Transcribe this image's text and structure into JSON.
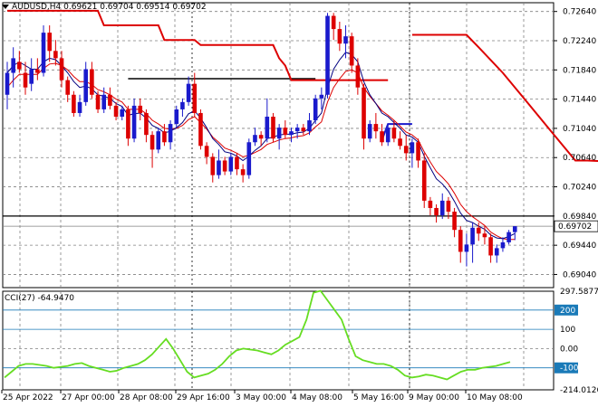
{
  "header": {
    "symbol": "AUDUSD,H4",
    "ohlc": "0.69621 0.69704 0.69514 0.69702"
  },
  "price_axis": {
    "ticks": [
      "0.72640",
      "0.72240",
      "0.71840",
      "0.71440",
      "0.71040",
      "0.70640",
      "0.70240",
      "0.69840",
      "0.69440",
      "0.69040"
    ],
    "current_price": "0.69702"
  },
  "cci_panel": {
    "title": "CCI(27) -64.9470",
    "axis_ticks": [
      "297.5877",
      "200",
      "100",
      "0.00",
      "-100",
      "-214.0126"
    ]
  },
  "time_axis": {
    "ticks": [
      "25 Apr 2022",
      "27 Apr 00:00",
      "28 Apr 08:00",
      "29 Apr 16:00",
      "3 May 00:00",
      "4 May 08:00",
      "5 May 16:00",
      "9 May 00:00",
      "10 May 08:00"
    ]
  },
  "colors": {
    "bull": "#1a1acc",
    "bear": "#dd0000",
    "ma_fast": "#000080",
    "ma_slow": "#dd0000",
    "stop": "#dd0000",
    "cci": "#66dd22",
    "grid": "#808080",
    "cci_level": "#1a7ab8"
  },
  "chart_data": {
    "type": "candlestick",
    "price_range": [
      0.6886,
      0.7276
    ],
    "support_level": 0.6984,
    "trend_line": {
      "price": 0.7172,
      "from_bar": 20,
      "to_bar": 51
    },
    "candles": [
      [
        0.715,
        0.7195,
        0.713,
        0.718
      ],
      [
        0.718,
        0.7215,
        0.716,
        0.72
      ],
      [
        0.7195,
        0.721,
        0.718,
        0.7185
      ],
      [
        0.718,
        0.7195,
        0.715,
        0.716
      ],
      [
        0.7165,
        0.72,
        0.7155,
        0.7185
      ],
      [
        0.7185,
        0.72,
        0.717,
        0.718
      ],
      [
        0.718,
        0.7245,
        0.7175,
        0.7235
      ],
      [
        0.7235,
        0.7245,
        0.7195,
        0.721
      ],
      [
        0.721,
        0.7225,
        0.719,
        0.72
      ],
      [
        0.72,
        0.721,
        0.716,
        0.717
      ],
      [
        0.717,
        0.7175,
        0.714,
        0.715
      ],
      [
        0.715,
        0.7155,
        0.712,
        0.7125
      ],
      [
        0.7125,
        0.715,
        0.712,
        0.714
      ],
      [
        0.714,
        0.7195,
        0.7135,
        0.7185
      ],
      [
        0.7185,
        0.7195,
        0.7145,
        0.715
      ],
      [
        0.715,
        0.7155,
        0.7125,
        0.713
      ],
      [
        0.713,
        0.716,
        0.7125,
        0.715
      ],
      [
        0.715,
        0.716,
        0.713,
        0.7135
      ],
      [
        0.7135,
        0.714,
        0.7115,
        0.712
      ],
      [
        0.712,
        0.7135,
        0.7115,
        0.713
      ],
      [
        0.713,
        0.7135,
        0.708,
        0.709
      ],
      [
        0.709,
        0.7145,
        0.7085,
        0.7135
      ],
      [
        0.7135,
        0.7145,
        0.7115,
        0.7125
      ],
      [
        0.7125,
        0.713,
        0.7085,
        0.7095
      ],
      [
        0.7095,
        0.71,
        0.705,
        0.7075
      ],
      [
        0.7075,
        0.7105,
        0.707,
        0.71
      ],
      [
        0.71,
        0.711,
        0.708,
        0.7085
      ],
      [
        0.7085,
        0.7115,
        0.7075,
        0.711
      ],
      [
        0.711,
        0.7135,
        0.7105,
        0.713
      ],
      [
        0.713,
        0.7145,
        0.712,
        0.714
      ],
      [
        0.714,
        0.7175,
        0.7135,
        0.7165
      ],
      [
        0.7165,
        0.718,
        0.712,
        0.7125
      ],
      [
        0.7125,
        0.713,
        0.7075,
        0.708
      ],
      [
        0.708,
        0.7085,
        0.7055,
        0.7065
      ],
      [
        0.7065,
        0.707,
        0.703,
        0.704
      ],
      [
        0.704,
        0.7075,
        0.7035,
        0.706
      ],
      [
        0.706,
        0.7065,
        0.704,
        0.7045
      ],
      [
        0.7045,
        0.707,
        0.704,
        0.7065
      ],
      [
        0.7065,
        0.707,
        0.704,
        0.7048
      ],
      [
        0.7048,
        0.7055,
        0.703,
        0.704
      ],
      [
        0.704,
        0.709,
        0.7035,
        0.7085
      ],
      [
        0.7085,
        0.7105,
        0.708,
        0.7095
      ],
      [
        0.7095,
        0.71,
        0.708,
        0.709
      ],
      [
        0.709,
        0.7145,
        0.7085,
        0.712
      ],
      [
        0.712,
        0.7125,
        0.7085,
        0.709
      ],
      [
        0.709,
        0.711,
        0.7075,
        0.7105
      ],
      [
        0.7105,
        0.7115,
        0.709,
        0.7095
      ],
      [
        0.7095,
        0.7105,
        0.7085,
        0.71
      ],
      [
        0.71,
        0.711,
        0.709,
        0.7105
      ],
      [
        0.7105,
        0.711,
        0.7095,
        0.71
      ],
      [
        0.71,
        0.7125,
        0.7095,
        0.7115
      ],
      [
        0.7115,
        0.715,
        0.711,
        0.7145
      ],
      [
        0.7145,
        0.716,
        0.713,
        0.715
      ],
      [
        0.715,
        0.7262,
        0.7145,
        0.7258
      ],
      [
        0.7258,
        0.7262,
        0.7225,
        0.724
      ],
      [
        0.724,
        0.725,
        0.721,
        0.722
      ],
      [
        0.722,
        0.7245,
        0.72,
        0.723
      ],
      [
        0.723,
        0.7235,
        0.718,
        0.719
      ],
      [
        0.719,
        0.72,
        0.715,
        0.716
      ],
      [
        0.716,
        0.7165,
        0.7075,
        0.709
      ],
      [
        0.709,
        0.7115,
        0.7085,
        0.711
      ],
      [
        0.711,
        0.7125,
        0.709,
        0.71
      ],
      [
        0.71,
        0.711,
        0.708,
        0.7085
      ],
      [
        0.7085,
        0.711,
        0.708,
        0.7105
      ],
      [
        0.7105,
        0.7115,
        0.7085,
        0.709
      ],
      [
        0.709,
        0.71,
        0.7075,
        0.708
      ],
      [
        0.708,
        0.7095,
        0.706,
        0.707
      ],
      [
        0.707,
        0.709,
        0.705,
        0.7085
      ],
      [
        0.7085,
        0.709,
        0.705,
        0.706
      ],
      [
        0.706,
        0.707,
        0.6995,
        0.7005
      ],
      [
        0.7005,
        0.701,
        0.6985,
        0.6995
      ],
      [
        0.6995,
        0.7,
        0.6975,
        0.6985
      ],
      [
        0.6985,
        0.7015,
        0.698,
        0.7005
      ],
      [
        0.7005,
        0.701,
        0.698,
        0.699
      ],
      [
        0.699,
        0.6995,
        0.6955,
        0.6965
      ],
      [
        0.6965,
        0.697,
        0.692,
        0.6935
      ],
      [
        0.6935,
        0.696,
        0.6915,
        0.6945
      ],
      [
        0.6945,
        0.6975,
        0.692,
        0.6968
      ],
      [
        0.6968,
        0.6975,
        0.695,
        0.696
      ],
      [
        0.696,
        0.697,
        0.6945,
        0.6955
      ],
      [
        0.6955,
        0.696,
        0.692,
        0.693
      ],
      [
        0.693,
        0.6945,
        0.692,
        0.694
      ],
      [
        0.694,
        0.6955,
        0.6935,
        0.6948
      ],
      [
        0.6948,
        0.6965,
        0.6945,
        0.6962
      ],
      [
        0.6962,
        0.697,
        0.6951,
        0.697
      ]
    ],
    "ma_fast": [
      0.718,
      0.719,
      0.7195,
      0.719,
      0.7185,
      0.7185,
      0.7195,
      0.72,
      0.7198,
      0.719,
      0.718,
      0.7168,
      0.716,
      0.7162,
      0.7158,
      0.715,
      0.7148,
      0.7145,
      0.7138,
      0.7134,
      0.7122,
      0.7124,
      0.7125,
      0.7118,
      0.7108,
      0.7104,
      0.7098,
      0.71,
      0.7105,
      0.7112,
      0.7124,
      0.7128,
      0.7118,
      0.7105,
      0.709,
      0.7082,
      0.7072,
      0.707,
      0.7066,
      0.706,
      0.7066,
      0.7074,
      0.708,
      0.709,
      0.7092,
      0.7095,
      0.7096,
      0.7096,
      0.7098,
      0.7099,
      0.7104,
      0.7115,
      0.7125,
      0.716,
      0.7185,
      0.7198,
      0.7208,
      0.7205,
      0.7195,
      0.7168,
      0.715,
      0.7138,
      0.7125,
      0.712,
      0.7112,
      0.7104,
      0.7095,
      0.7092,
      0.7085,
      0.7066,
      0.705,
      0.7035,
      0.7028,
      0.7018,
      0.7004,
      0.6988,
      0.6978,
      0.6975,
      0.697,
      0.6966,
      0.6958,
      0.6954,
      0.6953,
      0.6956,
      0.696
    ],
    "ma_slow": [
      0.716,
      0.717,
      0.7178,
      0.7178,
      0.7178,
      0.7178,
      0.7186,
      0.7192,
      0.7193,
      0.719,
      0.7184,
      0.7175,
      0.7168,
      0.7168,
      0.7164,
      0.7157,
      0.7154,
      0.715,
      0.7144,
      0.714,
      0.713,
      0.713,
      0.713,
      0.7124,
      0.7115,
      0.711,
      0.7104,
      0.7103,
      0.7104,
      0.7108,
      0.7116,
      0.712,
      0.7112,
      0.7103,
      0.7092,
      0.7085,
      0.7077,
      0.7074,
      0.707,
      0.7065,
      0.7067,
      0.7071,
      0.7075,
      0.7082,
      0.7085,
      0.7088,
      0.709,
      0.7091,
      0.7093,
      0.7094,
      0.7098,
      0.7106,
      0.7113,
      0.714,
      0.716,
      0.7172,
      0.7182,
      0.7184,
      0.718,
      0.716,
      0.7148,
      0.7138,
      0.7128,
      0.7122,
      0.7115,
      0.7107,
      0.7099,
      0.7095,
      0.7088,
      0.7072,
      0.7058,
      0.7045,
      0.7037,
      0.7028,
      0.7015,
      0.7,
      0.699,
      0.6983,
      0.6977,
      0.6971,
      0.6962,
      0.6957,
      0.6953,
      0.6952,
      0.6952
    ],
    "stop_line": [
      0.7265,
      0.7265,
      0.7265,
      0.7265,
      0.7265,
      0.7265,
      0.7265,
      0.7265,
      0.7265,
      0.7265,
      0.7265,
      0.7265,
      0.7265,
      0.7265,
      0.7265,
      0.7265,
      0.7245,
      0.7245,
      0.7245,
      0.7245,
      0.7245,
      0.7245,
      0.7245,
      0.7245,
      0.7245,
      0.7245,
      0.7225,
      0.7225,
      0.7225,
      0.7225,
      0.7225,
      0.7225,
      0.7218,
      0.7218,
      0.7218,
      0.7218,
      0.7218,
      0.7218,
      0.7218,
      0.7218,
      0.7218,
      0.7218,
      0.7218,
      0.7218,
      0.7218,
      0.72,
      0.719,
      0.717,
      0.717,
      0.717,
      0.717,
      0.717,
      0.717,
      0.717,
      0.717,
      0.717,
      0.717,
      0.717,
      0.717,
      0.717,
      0.717,
      0.717,
      0.717,
      0.717,
      null,
      null,
      null,
      null,
      null,
      null,
      null,
      null,
      null,
      null,
      null,
      null,
      null,
      null,
      null,
      null,
      null,
      null,
      null,
      null,
      null
    ],
    "blue_stop": {
      "from_bar": 63,
      "to_bar": 67,
      "price": 0.711
    },
    "upper_stop": [
      [
        67,
        0.7232
      ],
      [
        76,
        0.7232
      ],
      [
        78,
        0.7215
      ],
      [
        82,
        0.718
      ],
      [
        86,
        0.714
      ],
      [
        90,
        0.71
      ],
      [
        94,
        0.706
      ],
      [
        96,
        0.706
      ],
      [
        101,
        0.7058
      ]
    ],
    "cci_range": [
      -214.0126,
      297.5877
    ],
    "cci": [
      -150,
      -120,
      -90,
      -80,
      -80,
      -85,
      -90,
      -100,
      -95,
      -90,
      -80,
      -75,
      -90,
      -100,
      -110,
      -120,
      -115,
      -100,
      -90,
      -80,
      -60,
      -30,
      10,
      50,
      0,
      -60,
      -120,
      -150,
      -140,
      -130,
      -110,
      -80,
      -40,
      -10,
      0,
      -5,
      -10,
      -20,
      -30,
      -10,
      20,
      40,
      60,
      150,
      290,
      300,
      250,
      200,
      150,
      50,
      -40,
      -60,
      -70,
      -80,
      -80,
      -90,
      -110,
      -140,
      -150,
      -145,
      -135,
      -140,
      -150,
      -160,
      -140,
      -120,
      -110,
      -110,
      -100,
      -95,
      -90,
      -80,
      -70
    ]
  }
}
